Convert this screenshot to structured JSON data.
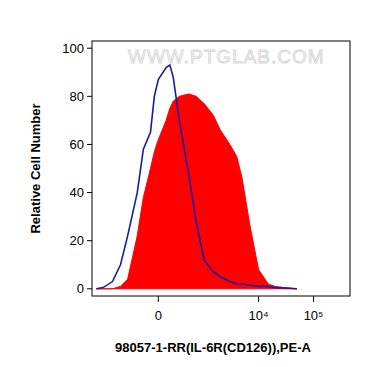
{
  "chart_data": {
    "type": "area",
    "annotations": [
      "WWW.PTGLAB.COM"
    ],
    "x_label": "98057-1-RR(IL-6R(CD126)),PE-A",
    "y_label": "Relative Cell Number",
    "x": [
      -2000,
      -1500,
      -1000,
      -700,
      -500,
      -300,
      -200,
      -100,
      -50,
      0,
      100,
      150,
      200,
      300,
      500,
      700,
      1000,
      1500,
      2000,
      3000,
      4000,
      5000,
      7000,
      10000,
      15000,
      20000,
      30000,
      50000
    ],
    "series": [
      {
        "type": "area",
        "color": "#ff0000",
        "values": [
          0,
          0,
          0,
          1,
          4,
          22,
          38,
          50,
          57,
          62,
          70,
          75,
          78,
          80,
          81,
          80,
          77,
          72,
          66,
          60,
          55,
          46,
          26,
          8,
          2,
          1,
          0.5,
          0
        ]
      },
      {
        "type": "line",
        "color": "#1a1aa0",
        "values": [
          0,
          0.5,
          3,
          10,
          22,
          40,
          58,
          65,
          80,
          87,
          92,
          93,
          88,
          70,
          47,
          28,
          12,
          7,
          5,
          3,
          2,
          2,
          1.5,
          1,
          1,
          0.5,
          0.3,
          0
        ]
      }
    ],
    "xlim": [
      -2400,
      460000
    ],
    "ylim": [
      -3,
      103
    ],
    "xticks": [
      0,
      {
        "value": 10000,
        "label": "10⁴"
      },
      {
        "value": 100000,
        "label": "10⁵"
      }
    ],
    "yticks": [
      0,
      20,
      40,
      60,
      80,
      100
    ],
    "grid": false
  }
}
